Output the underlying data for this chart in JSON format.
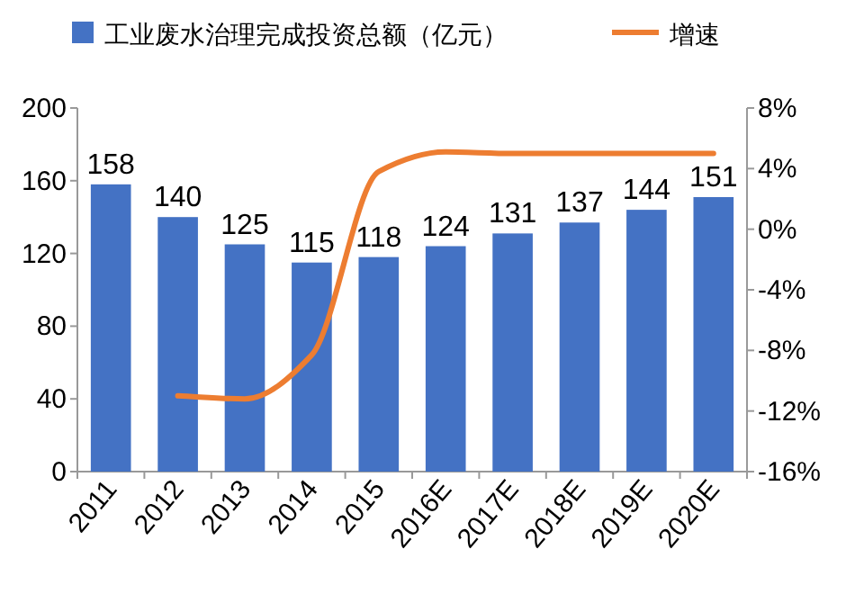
{
  "chart_data": {
    "type": "bar",
    "categories": [
      "2011",
      "2012",
      "2013",
      "2014",
      "2015",
      "2016E",
      "2017E",
      "2018E",
      "2019E",
      "2020E"
    ],
    "series": [
      {
        "name": "工业废水治理完成投资总额（亿元）",
        "color": "#4472c4",
        "values": [
          158,
          140,
          125,
          115,
          118,
          124,
          131,
          137,
          144,
          151
        ],
        "value_labels": [
          "158",
          "140",
          "125",
          "115",
          "118",
          "124",
          "131",
          "137",
          "144",
          "151"
        ]
      },
      {
        "name": "增速",
        "type": "line",
        "axis": "y2",
        "color": "#ed7d31",
        "values": [
          null,
          -11,
          -11.2,
          -8.3,
          3.8,
          5.1,
          5,
          5,
          5,
          5
        ]
      }
    ],
    "ylim": [
      0,
      200
    ],
    "yticks": [
      0,
      40,
      80,
      120,
      160,
      200
    ],
    "y2lim": [
      -16,
      8
    ],
    "y2ticks": [
      {
        "value": -16,
        "label": "-16%"
      },
      {
        "value": -12,
        "label": "-12%"
      },
      {
        "value": -8,
        "label": "-8%"
      },
      {
        "value": -4,
        "label": "-4%"
      },
      {
        "value": 0,
        "label": "0%"
      },
      {
        "value": 4,
        "label": "4%"
      },
      {
        "value": 8,
        "label": "8%"
      }
    ],
    "legend": "top"
  }
}
